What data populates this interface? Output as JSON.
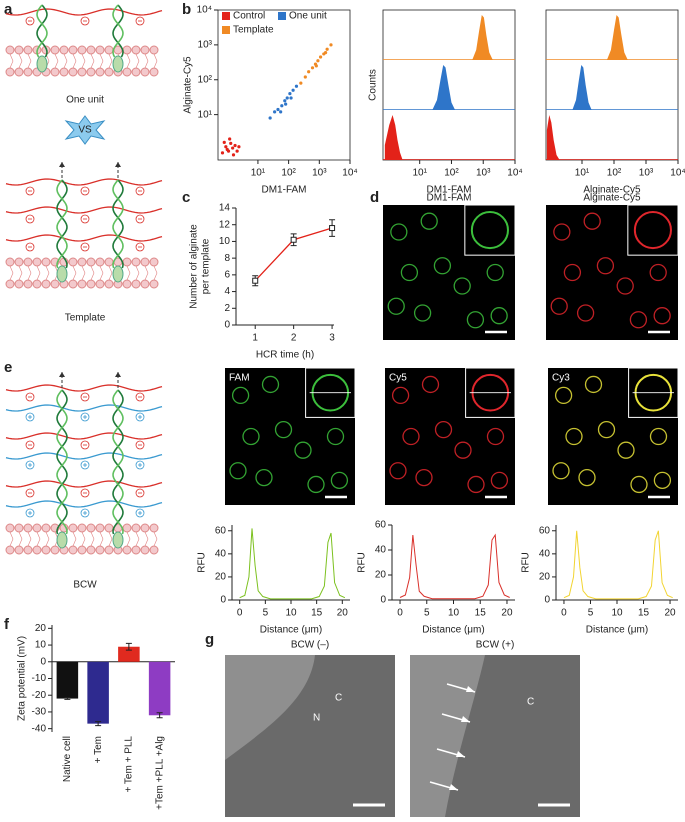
{
  "panel_labels": [
    "a",
    "b",
    "c",
    "d",
    "e",
    "f",
    "g"
  ],
  "diagram_a": {
    "top_label": "One unit",
    "versus": "VS",
    "bottom_label": "Template"
  },
  "diagram_e": {
    "label": "BCW"
  },
  "images_d": [
    {
      "label": "DM1-FAM"
    },
    {
      "label": "Alginate-Cy5"
    }
  ],
  "images_e": [
    {
      "label": "FAM"
    },
    {
      "label": "Cy5"
    },
    {
      "label": "Cy3"
    }
  ],
  "images_g": [
    {
      "label": "BCW (–)",
      "annotations": [
        "C",
        "N"
      ]
    },
    {
      "label": "BCW (+)",
      "annotations": [
        "C"
      ]
    }
  ],
  "chart_data": [
    {
      "type": "scatter",
      "x_label": "DM1-FAM",
      "y_label": "Alginate-Cy5",
      "log_x": true,
      "log_y": true,
      "frame": true,
      "legend": "top-left",
      "xlim": [
        0.5,
        10000
      ],
      "ylim": [
        0.5,
        10000
      ],
      "xticks": [
        {
          "value": 10,
          "label": "10¹"
        },
        {
          "value": 100,
          "label": "10²"
        },
        {
          "value": 1000,
          "label": "10³"
        },
        {
          "value": 10000,
          "label": "10⁴"
        }
      ],
      "yticks": [
        {
          "value": 10,
          "label": "10¹"
        },
        {
          "value": 100,
          "label": "10²"
        },
        {
          "value": 1000,
          "label": "10³"
        },
        {
          "value": 10000,
          "label": "10⁴"
        }
      ],
      "series": [
        {
          "name": "Control",
          "color": "#e32219",
          "x": [
            0.7,
            0.9,
            1.1,
            1.3,
            1.5,
            1.8,
            2.1,
            0.8,
            1.2,
            1.6,
            2.4,
            1.0
          ],
          "values": [
            0.8,
            1.2,
            0.9,
            1.5,
            1.1,
            1.3,
            0.9,
            1.6,
            2.0,
            0.7,
            1.2,
            1.0
          ]
        },
        {
          "name": "One unit",
          "color": "#2e75c9",
          "x": [
            25,
            35,
            45,
            60,
            75,
            90,
            110,
            140,
            180,
            55,
            80,
            120
          ],
          "values": [
            8,
            12,
            14,
            18,
            25,
            30,
            40,
            50,
            65,
            12,
            20,
            30
          ]
        },
        {
          "name": "Template",
          "color": "#f08a24",
          "x": [
            250,
            350,
            450,
            600,
            750,
            900,
            1100,
            1400,
            1800,
            2400,
            800,
            1600
          ],
          "values": [
            80,
            120,
            170,
            220,
            280,
            350,
            450,
            550,
            750,
            1000,
            250,
            600
          ]
        }
      ]
    },
    {
      "type": "area",
      "lanes": true,
      "x_label": "DM1-FAM",
      "y_label": "Counts",
      "log_x": true,
      "frame": true,
      "xlim": [
        0.7,
        10000
      ],
      "ylim": [
        0,
        1
      ],
      "xticks": [
        {
          "value": 10,
          "label": "10¹"
        },
        {
          "value": 100,
          "label": "10²"
        },
        {
          "value": 1000,
          "label": "10³"
        },
        {
          "value": 10000,
          "label": "10⁴"
        }
      ],
      "series": [
        {
          "color": "#e32219",
          "x": [
            0.8,
            1.1,
            1.4,
            1.7,
            2.0,
            2.4,
            2.9
          ],
          "values": [
            0.3,
            0.7,
            0.9,
            0.7,
            0.4,
            0.15,
            0
          ]
        },
        {
          "color": "#2e75c9",
          "x": [
            25,
            35,
            45,
            55,
            65,
            80,
            100,
            130
          ],
          "values": [
            0,
            0.2,
            0.6,
            0.9,
            0.85,
            0.5,
            0.15,
            0
          ]
        },
        {
          "color": "#f08a24",
          "x": [
            450,
            600,
            750,
            900,
            1050,
            1250,
            1550,
            2000
          ],
          "values": [
            0,
            0.2,
            0.6,
            0.9,
            0.85,
            0.5,
            0.15,
            0
          ]
        }
      ]
    },
    {
      "type": "area",
      "lanes": true,
      "x_label": "Alginate-Cy5",
      "log_x": true,
      "frame": true,
      "xlim": [
        0.75,
        10000
      ],
      "ylim": [
        0,
        1
      ],
      "xticks": [
        {
          "value": 10,
          "label": "10¹"
        },
        {
          "value": 100,
          "label": "10²"
        },
        {
          "value": 1000,
          "label": "10³"
        },
        {
          "value": 10000,
          "label": "10⁴"
        }
      ],
      "series": [
        {
          "color": "#e32219",
          "x": [
            0.8,
            0.95,
            1.1,
            1.3,
            1.6,
            2.0
          ],
          "values": [
            0.6,
            0.9,
            0.75,
            0.4,
            0.1,
            0
          ]
        },
        {
          "color": "#2e75c9",
          "x": [
            5,
            6.5,
            8,
            9.5,
            11,
            13,
            16,
            20
          ],
          "values": [
            0,
            0.2,
            0.6,
            0.9,
            0.85,
            0.5,
            0.15,
            0
          ]
        },
        {
          "color": "#f08a24",
          "x": [
            60,
            80,
            100,
            120,
            140,
            170,
            210,
            270
          ],
          "values": [
            0,
            0.2,
            0.6,
            0.9,
            0.85,
            0.5,
            0.15,
            0
          ]
        }
      ]
    },
    {
      "type": "line",
      "x_label": "HCR time (h)",
      "y_label": [
        "Number of alginate",
        "per template"
      ],
      "color": "#e32219",
      "markers": true,
      "xlim": [
        0.5,
        3.05
      ],
      "ylim": [
        0,
        14
      ],
      "xticks": [
        1,
        2,
        3
      ],
      "yticks": [
        0,
        2,
        4,
        6,
        8,
        10,
        12,
        14
      ],
      "x": [
        1,
        2,
        3
      ],
      "values": [
        5.3,
        10.2,
        11.6
      ],
      "errors": [
        0.6,
        0.7,
        1.0
      ]
    },
    {
      "type": "line",
      "x_label": "Distance (μm)",
      "y_label": "RFU",
      "color": "#7cc11f",
      "xlim": [
        -1.5,
        21.5
      ],
      "ylim": [
        0,
        65
      ],
      "xticks": [
        0,
        5,
        10,
        15,
        20
      ],
      "yticks": [
        0,
        20,
        40,
        60
      ],
      "x": [
        0,
        1,
        1.8,
        2.4,
        3,
        3.6,
        4.5,
        6,
        10,
        14,
        15.5,
        16.5,
        17.2,
        17.8,
        18.5,
        19.5,
        20.5
      ],
      "values": [
        2,
        4,
        20,
        62,
        30,
        8,
        3,
        1,
        1,
        1,
        3,
        12,
        50,
        58,
        15,
        4,
        2
      ]
    },
    {
      "type": "line",
      "x_label": "Distance (μm)",
      "y_label": "RFU",
      "color": "#d9302a",
      "xlim": [
        -1.5,
        21.5
      ],
      "ylim": [
        0,
        60
      ],
      "xticks": [
        0,
        5,
        10,
        15,
        20
      ],
      "yticks": [
        0,
        20,
        40,
        60
      ],
      "x": [
        0,
        1,
        1.8,
        2.4,
        3,
        3.6,
        4.5,
        6,
        10,
        14,
        15.5,
        16.5,
        17.2,
        17.8,
        18.5,
        19.5,
        20.5
      ],
      "values": [
        2,
        4,
        18,
        52,
        28,
        7,
        3,
        1,
        1,
        1,
        3,
        12,
        48,
        52,
        14,
        4,
        2
      ]
    },
    {
      "type": "line",
      "x_label": "Distance (μm)",
      "y_label": "RFU",
      "color": "#f2d431",
      "xlim": [
        -1.5,
        21.5
      ],
      "ylim": [
        0,
        65
      ],
      "xticks": [
        0,
        5,
        10,
        15,
        20
      ],
      "yticks": [
        0,
        20,
        40,
        60
      ],
      "x": [
        0,
        1,
        1.8,
        2.4,
        3,
        3.6,
        4.5,
        6,
        10,
        14,
        15.5,
        16.5,
        17.2,
        17.8,
        18.5,
        19.5,
        20.5
      ],
      "values": [
        2,
        4,
        20,
        60,
        28,
        8,
        3,
        1,
        1,
        1,
        3,
        12,
        52,
        60,
        15,
        4,
        2
      ]
    },
    {
      "type": "bar",
      "y_label": "Zeta potential (mV)",
      "categories": [
        "Native cell",
        "+ Tem",
        "+ Tem + PLL",
        "+Tem +PLL +Alg"
      ],
      "values": [
        -22,
        -37,
        9,
        -32
      ],
      "errors": [
        0.5,
        1.2,
        2,
        1.5
      ],
      "colors": [
        "#111111",
        "#2e2a8f",
        "#e02a1f",
        "#8e3cc3"
      ],
      "ylim": [
        -42,
        22
      ],
      "yticks": [
        -40,
        -30,
        -20,
        -10,
        0,
        10,
        20
      ]
    }
  ]
}
